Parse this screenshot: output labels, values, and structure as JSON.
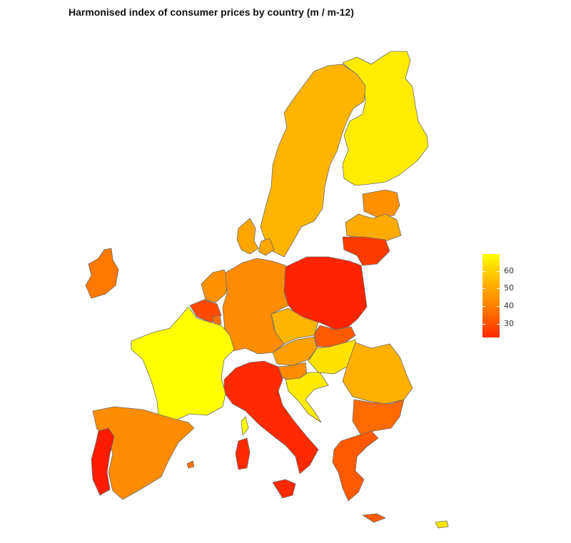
{
  "title": "Harmonised index of consumer prices by country (m / m-12)",
  "legend": {
    "ticks": [
      "60",
      "50",
      "40",
      "30"
    ],
    "colors": [
      "#ffff00",
      "#ffaa00",
      "#ff7a00",
      "#ff2a00"
    ]
  },
  "countries": [
    {
      "id": "finland",
      "color": "#ffec00"
    },
    {
      "id": "sweden",
      "color": "#ffb400"
    },
    {
      "id": "estonia",
      "color": "#ff9000"
    },
    {
      "id": "latvia",
      "color": "#ffaa00"
    },
    {
      "id": "lithuania",
      "color": "#ff3c00"
    },
    {
      "id": "denmark",
      "color": "#ffa500"
    },
    {
      "id": "ireland",
      "color": "#ff7800"
    },
    {
      "id": "netherlands",
      "color": "#ff9000"
    },
    {
      "id": "belgium",
      "color": "#ff4a00"
    },
    {
      "id": "luxembourg",
      "color": "#ff7000"
    },
    {
      "id": "germany",
      "color": "#ff8c00"
    },
    {
      "id": "poland",
      "color": "#ff2400"
    },
    {
      "id": "czechia",
      "color": "#ffb400"
    },
    {
      "id": "slovakia",
      "color": "#ff5a00"
    },
    {
      "id": "austria",
      "color": "#ffa000"
    },
    {
      "id": "hungary",
      "color": "#ffe200"
    },
    {
      "id": "slovenia",
      "color": "#ff8c00"
    },
    {
      "id": "croatia",
      "color": "#ffea00"
    },
    {
      "id": "romania",
      "color": "#ffb000"
    },
    {
      "id": "bulgaria",
      "color": "#ff6a00"
    },
    {
      "id": "greece",
      "color": "#ff5a00"
    },
    {
      "id": "italy",
      "color": "#ff2a00"
    },
    {
      "id": "france",
      "color": "#ffff00"
    },
    {
      "id": "spain",
      "color": "#ff8c00"
    },
    {
      "id": "portugal",
      "color": "#ff1c00"
    },
    {
      "id": "cyprus",
      "color": "#ffe600"
    },
    {
      "id": "malta",
      "color": "#ff7000"
    }
  ]
}
